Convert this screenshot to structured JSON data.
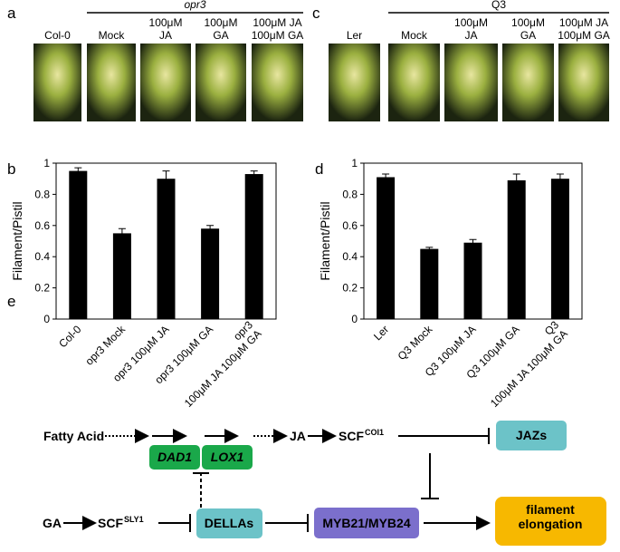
{
  "panels": [
    {
      "label": "a",
      "group": "opr3",
      "columns": [
        "Col-0",
        "Mock",
        "100μM\nJA",
        "100μM\nGA",
        "100μM JA\n100μM GA"
      ]
    },
    {
      "label": "c",
      "group": "Q3",
      "columns": [
        "Ler",
        "Mock",
        "100μM\nJA",
        "100μM\nGA",
        "100μM JA\n100μM GA"
      ]
    }
  ],
  "chart_data": [
    {
      "type": "bar",
      "panel": "b",
      "ylabel": "Filament/Pistil",
      "categories": [
        "Col-0",
        "opr3 Mock",
        "opr3 100μM JA",
        "opr3 100μM GA",
        "opr3\n100μM JA 100μM GA"
      ],
      "values": [
        0.95,
        0.55,
        0.9,
        0.58,
        0.93
      ],
      "errors": [
        0.02,
        0.03,
        0.05,
        0.02,
        0.02
      ],
      "color": "#000000",
      "ylim": [
        0,
        1
      ],
      "yticks": [
        0,
        0.2,
        0.4,
        0.6,
        0.8,
        1
      ]
    },
    {
      "type": "bar",
      "panel": "d",
      "ylabel": "Filament/Pistil",
      "categories": [
        "Ler",
        "Q3 Mock",
        "Q3 100μM JA",
        "Q3 100μM GA",
        "Q3\n100μM JA 100μM GA"
      ],
      "values": [
        0.91,
        0.45,
        0.49,
        0.89,
        0.9
      ],
      "errors": [
        0.02,
        0.01,
        0.02,
        0.04,
        0.03
      ],
      "color": "#000000",
      "ylim": [
        0,
        1
      ],
      "yticks": [
        0,
        0.2,
        0.4,
        0.6,
        0.8,
        1
      ]
    }
  ],
  "diagram": {
    "label": "e",
    "nodes": [
      {
        "label": "Fatty Acid"
      },
      {
        "label": "DAD1"
      },
      {
        "label": "LOX1"
      },
      {
        "label": "JA"
      },
      {
        "label": "SCF",
        "superscript": "COI1"
      },
      {
        "label": "JAZs"
      },
      {
        "label": "GA"
      },
      {
        "label": "SCF",
        "superscript": "SLY1"
      },
      {
        "label": "DELLAs"
      },
      {
        "label": "MYB21/MYB24"
      },
      {
        "label": "filament\nelongation"
      }
    ]
  }
}
